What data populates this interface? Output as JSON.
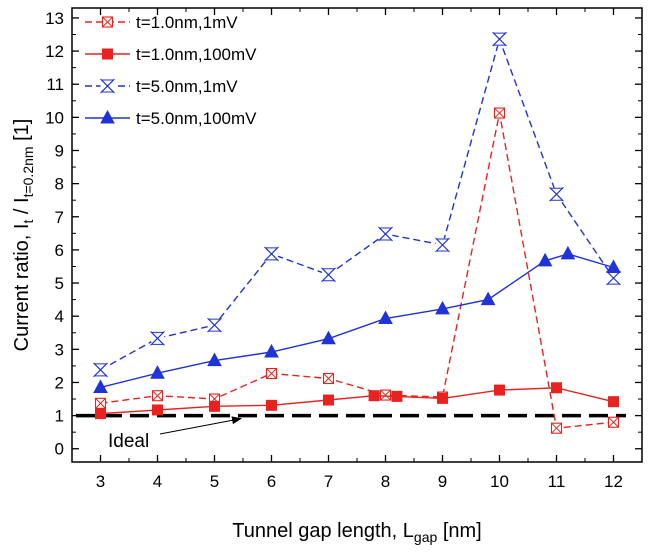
{
  "chart_data": {
    "type": "line",
    "xlabel": {
      "main": "Tunnel gap length, L",
      "sub": "gap",
      "unit": " [nm]"
    },
    "ylabel": {
      "pre": "Current ratio, I",
      "sub1": "t",
      "mid": " / I",
      "sub2": "t=0.2nm",
      "post": "  [1]"
    },
    "xlim": [
      2.5,
      12.5
    ],
    "ylim": [
      -0.4,
      13.3
    ],
    "xticks": [
      3,
      4,
      5,
      6,
      7,
      8,
      9,
      10,
      11,
      12
    ],
    "yticks": [
      0,
      1,
      2,
      3,
      4,
      5,
      6,
      7,
      8,
      9,
      10,
      11,
      12,
      13
    ],
    "grid": false,
    "legend_position": "top-left",
    "series": [
      {
        "name": "t=1.0nm,1mV",
        "color": "#e8231f",
        "dash": "dashed",
        "marker": "square-x-open",
        "points": [
          [
            3,
            1.37
          ],
          [
            4,
            1.6
          ],
          [
            5,
            1.5
          ],
          [
            6,
            2.27
          ],
          [
            7,
            2.12
          ],
          [
            8,
            1.62
          ],
          [
            9,
            1.56
          ],
          [
            10,
            10.13
          ],
          [
            11,
            0.62
          ],
          [
            12,
            0.8
          ]
        ]
      },
      {
        "name": "t=1.0nm,100mV",
        "color": "#e8231f",
        "dash": "solid",
        "marker": "square-filled",
        "points": [
          [
            3,
            1.06
          ],
          [
            4,
            1.17
          ],
          [
            5,
            1.28
          ],
          [
            6,
            1.31
          ],
          [
            7,
            1.47
          ],
          [
            7.8,
            1.6
          ],
          [
            8.2,
            1.58
          ],
          [
            9,
            1.52
          ],
          [
            10,
            1.77
          ],
          [
            11,
            1.84
          ],
          [
            12,
            1.42
          ]
        ]
      },
      {
        "name": "t=5.0nm,1mV",
        "color": "#1f33d8",
        "dash": "dashed",
        "marker": "asterisk-open",
        "points": [
          [
            3,
            2.38
          ],
          [
            4,
            3.33
          ],
          [
            5,
            3.73
          ],
          [
            6,
            5.88
          ],
          [
            7,
            5.25
          ],
          [
            8,
            6.48
          ],
          [
            9,
            6.15
          ],
          [
            10,
            12.36
          ],
          [
            11,
            7.68
          ],
          [
            12,
            5.15
          ]
        ]
      },
      {
        "name": "t=5.0nm,100mV",
        "color": "#1f33d8",
        "dash": "solid",
        "marker": "triangle-filled",
        "points": [
          [
            3,
            1.85
          ],
          [
            4,
            2.28
          ],
          [
            5,
            2.66
          ],
          [
            6,
            2.92
          ],
          [
            7,
            3.32
          ],
          [
            8,
            3.93
          ],
          [
            9,
            4.22
          ],
          [
            9.8,
            4.5
          ],
          [
            10.8,
            5.67
          ],
          [
            11.2,
            5.88
          ],
          [
            12,
            5.47
          ]
        ]
      }
    ],
    "reference_line": {
      "y": 1,
      "color": "#000000",
      "dash": "long-dash"
    },
    "annotations": [
      {
        "text": "Ideal",
        "points_to": [
          5.5,
          1.0
        ]
      }
    ]
  }
}
